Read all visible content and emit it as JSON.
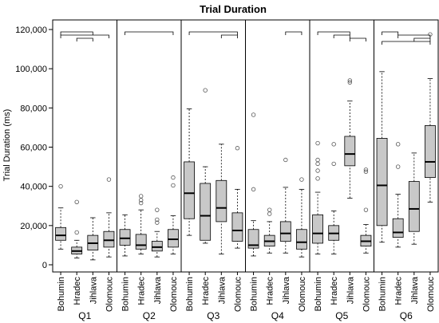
{
  "chart_data": {
    "type": "boxplot",
    "title": "Trial Duration",
    "ylabel": "Trial Duration (ms)",
    "xlabel": "",
    "ylim": [
      0,
      120000
    ],
    "yticks": [
      0,
      20000,
      40000,
      60000,
      80000,
      100000,
      120000
    ],
    "ytick_labels": [
      "0",
      "20,000",
      "40,000",
      "60,000",
      "80,000",
      "100,000",
      "120,000"
    ],
    "grid": false,
    "categories": [
      "Bohumin",
      "Hradec",
      "Jihlava",
      "Olomouc"
    ],
    "box_color": "#c8c8c8",
    "panels": [
      {
        "name": "Q1",
        "boxes": [
          {
            "category": "Bohumin",
            "whisker_low": 8000,
            "q1": 12500,
            "median": 15000,
            "q3": 19000,
            "whisker_high": 29000,
            "outliers": [
              40000
            ]
          },
          {
            "category": "Hradec",
            "whisker_low": 3500,
            "q1": 5500,
            "median": 7000,
            "q3": 9000,
            "whisker_high": 12500,
            "outliers": [
              16500,
              32000
            ]
          },
          {
            "category": "Jihlava",
            "whisker_low": 2500,
            "q1": 7500,
            "median": 11000,
            "q3": 15000,
            "whisker_high": 24000,
            "outliers": []
          },
          {
            "category": "Olomouc",
            "whisker_low": 4000,
            "q1": 9000,
            "median": 12500,
            "q3": 17000,
            "whisker_high": 26500,
            "outliers": [
              43500
            ]
          }
        ],
        "brackets": [
          [
            "Bohumin",
            "Jihlava"
          ],
          [
            "Bohumin",
            "Olomouc"
          ],
          [
            "Hradec",
            "Jihlava"
          ]
        ]
      },
      {
        "name": "Q2",
        "boxes": [
          {
            "category": "Bohumin",
            "whisker_low": 4500,
            "q1": 10000,
            "median": 13500,
            "q3": 18000,
            "whisker_high": 25500,
            "outliers": []
          },
          {
            "category": "Hradec",
            "whisker_low": 5500,
            "q1": 8000,
            "median": 10000,
            "q3": 15500,
            "whisker_high": 28000,
            "outliers": [
              31500,
              33000,
              35000
            ]
          },
          {
            "category": "Jihlava",
            "whisker_low": 4000,
            "q1": 7000,
            "median": 9000,
            "q3": 12000,
            "whisker_high": 17000,
            "outliers": [
              21500,
              23000,
              28000
            ]
          },
          {
            "category": "Olomouc",
            "whisker_low": 5500,
            "q1": 9000,
            "median": 13000,
            "q3": 18000,
            "whisker_high": 25000,
            "outliers": [
              40500,
              44500
            ]
          }
        ],
        "brackets": [
          [
            "Bohumin",
            "Olomouc"
          ]
        ]
      },
      {
        "name": "Q3",
        "boxes": [
          {
            "category": "Bohumin",
            "whisker_low": 15000,
            "q1": 23500,
            "median": 36500,
            "q3": 52500,
            "whisker_high": 79500,
            "outliers": []
          },
          {
            "category": "Hradec",
            "whisker_low": 11000,
            "q1": 12500,
            "median": 25000,
            "q3": 41500,
            "whisker_high": 50000,
            "outliers": [
              89000
            ]
          },
          {
            "category": "Jihlava",
            "whisker_low": 5500,
            "q1": 22000,
            "median": 29000,
            "q3": 43000,
            "whisker_high": 61500,
            "outliers": []
          },
          {
            "category": "Olomouc",
            "whisker_low": 8500,
            "q1": 12000,
            "median": 17500,
            "q3": 26500,
            "whisker_high": 38500,
            "outliers": [
              59500
            ]
          }
        ],
        "brackets": [
          [
            "Bohumin",
            "Olomouc"
          ],
          [
            "Jihlava",
            "Olomouc"
          ]
        ]
      },
      {
        "name": "Q4",
        "boxes": [
          {
            "category": "Bohumin",
            "whisker_low": 4500,
            "q1": 8500,
            "median": 10000,
            "q3": 18000,
            "whisker_high": 22500,
            "outliers": [
              38500,
              76500
            ]
          },
          {
            "category": "Hradec",
            "whisker_low": 6000,
            "q1": 9500,
            "median": 12000,
            "q3": 15000,
            "whisker_high": 22000,
            "outliers": [
              26000,
              28000
            ]
          },
          {
            "category": "Jihlava",
            "whisker_low": 6000,
            "q1": 12000,
            "median": 16000,
            "q3": 22000,
            "whisker_high": 39500,
            "outliers": [
              53500
            ]
          },
          {
            "category": "Olomouc",
            "whisker_low": 4000,
            "q1": 8000,
            "median": 11500,
            "q3": 18000,
            "whisker_high": 38500,
            "outliers": [
              43500
            ]
          }
        ],
        "brackets": [
          [
            "Jihlava",
            "Olomouc"
          ]
        ]
      },
      {
        "name": "Q5",
        "boxes": [
          {
            "category": "Bohumin",
            "whisker_low": 5500,
            "q1": 11000,
            "median": 16000,
            "q3": 25500,
            "whisker_high": 37000,
            "outliers": [
              44000,
              48000,
              51500,
              53500,
              62000
            ]
          },
          {
            "category": "Hradec",
            "whisker_low": 5500,
            "q1": 12500,
            "median": 16000,
            "q3": 20000,
            "whisker_high": 27500,
            "outliers": [
              51500,
              61500
            ]
          },
          {
            "category": "Jihlava",
            "whisker_low": 34000,
            "q1": 50500,
            "median": 56500,
            "q3": 65500,
            "whisker_high": 83500,
            "outliers": [
              93000,
              94000
            ]
          },
          {
            "category": "Olomouc",
            "whisker_low": 6000,
            "q1": 9500,
            "median": 12000,
            "q3": 15000,
            "whisker_high": 20500,
            "outliers": [
              28000,
              47500,
              48500
            ]
          }
        ],
        "brackets": [
          [
            "Bohumin",
            "Jihlava"
          ],
          [
            "Hradec",
            "Jihlava"
          ],
          [
            "Jihlava",
            "Olomouc"
          ]
        ]
      },
      {
        "name": "Q6",
        "boxes": [
          {
            "category": "Bohumin",
            "whisker_low": 11500,
            "q1": 20000,
            "median": 40500,
            "q3": 64500,
            "whisker_high": 98500,
            "outliers": []
          },
          {
            "category": "Hradec",
            "whisker_low": 9000,
            "q1": 14000,
            "median": 16500,
            "q3": 23500,
            "whisker_high": 36000,
            "outliers": [
              50000,
              61500
            ]
          },
          {
            "category": "Jihlava",
            "whisker_low": 10500,
            "q1": 17000,
            "median": 28500,
            "q3": 42500,
            "whisker_high": 57000,
            "outliers": []
          },
          {
            "category": "Olomouc",
            "whisker_low": 32000,
            "q1": 44500,
            "median": 52500,
            "q3": 71000,
            "whisker_high": 95000,
            "outliers": [
              117500
            ]
          }
        ],
        "brackets": [
          [
            "Bohumin",
            "Hradec"
          ],
          [
            "Hradec",
            "Olomouc"
          ],
          [
            "Jihlava",
            "Olomouc"
          ],
          [
            "Bohumin",
            "Olomouc"
          ]
        ]
      }
    ]
  }
}
